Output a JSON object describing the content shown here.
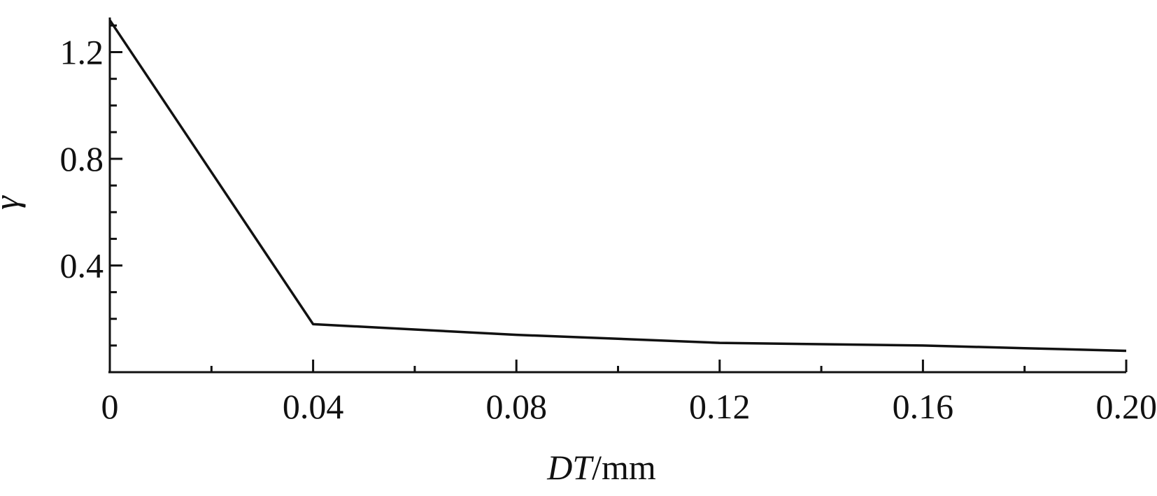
{
  "chart_data": {
    "type": "line",
    "title": "",
    "xlabel": "DT/mm",
    "xlabel_parts": {
      "italic": "DT",
      "unit": "/mm"
    },
    "ylabel": "γ",
    "xlim": [
      0,
      0.2
    ],
    "ylim": [
      0,
      1.33
    ],
    "x_ticks": [
      0,
      0.04,
      0.08,
      0.12,
      0.16,
      0.2
    ],
    "x_tick_labels": [
      "0",
      "0.04",
      "0.08",
      "0.12",
      "0.16",
      "0.20"
    ],
    "x_minor_ticks": [
      0.02,
      0.06,
      0.1,
      0.14,
      0.18
    ],
    "y_ticks": [
      0.4,
      0.8,
      1.2
    ],
    "y_tick_labels": [
      "0.4",
      "0.8",
      "1.2"
    ],
    "y_minor_ticks": [
      0.1,
      0.2,
      0.3,
      0.5,
      0.6,
      0.7,
      0.9,
      1.0,
      1.1,
      1.3
    ],
    "grid": false,
    "series": [
      {
        "x": [
          0,
          0.04,
          0.06,
          0.08,
          0.1,
          0.12,
          0.14,
          0.16,
          0.18,
          0.2
        ],
        "values": [
          1.32,
          0.18,
          0.16,
          0.14,
          0.125,
          0.11,
          0.105,
          0.1,
          0.09,
          0.08
        ],
        "color": "#111111"
      }
    ]
  }
}
